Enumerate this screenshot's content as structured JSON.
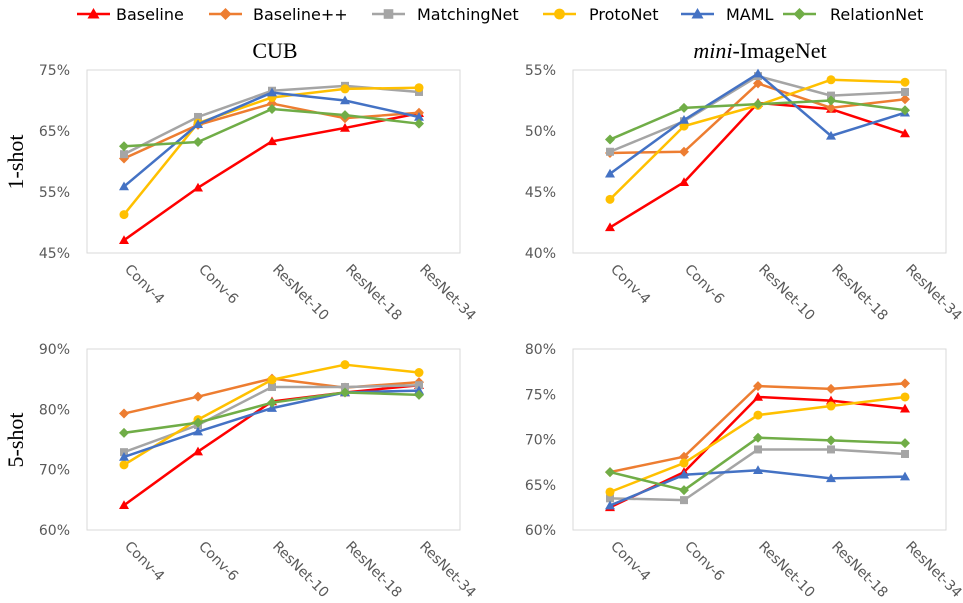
{
  "legend": [
    {
      "name": "Baseline",
      "color": "#ff0000",
      "marker": "triangle"
    },
    {
      "name": "Baseline++",
      "color": "#ed7d31",
      "marker": "diamond"
    },
    {
      "name": "MatchingNet",
      "color": "#a5a5a5",
      "marker": "square"
    },
    {
      "name": "ProtoNet",
      "color": "#ffc000",
      "marker": "circle"
    },
    {
      "name": "MAML",
      "color": "#4472c4",
      "marker": "triangle"
    },
    {
      "name": "RelationNet",
      "color": "#70ad47",
      "marker": "diamond"
    }
  ],
  "titles": {
    "cub": "CUB",
    "mini_italic": "mini",
    "mini_rest": "-ImageNet"
  },
  "row_labels": {
    "one_shot": "1-shot",
    "five_shot": "5-shot"
  },
  "chart_data": [
    {
      "type": "line",
      "title": "CUB",
      "row": "1-shot",
      "categories": [
        "Conv-4",
        "Conv-6",
        "ResNet-10",
        "ResNet-18",
        "ResNet-34"
      ],
      "ylim": [
        45,
        75
      ],
      "yticks": [
        "45%",
        "55%",
        "65%",
        "75%"
      ],
      "ytick_values": [
        45,
        55,
        65,
        75
      ],
      "series": [
        {
          "name": "Baseline",
          "values": [
            47.1,
            55.7,
            63.3,
            65.5,
            67.9
          ]
        },
        {
          "name": "Baseline++",
          "values": [
            60.5,
            66.0,
            69.5,
            67.1,
            68.0
          ]
        },
        {
          "name": "MatchingNet",
          "values": [
            61.2,
            67.3,
            71.6,
            72.4,
            71.4
          ]
        },
        {
          "name": "ProtoNet",
          "values": [
            51.3,
            66.3,
            70.5,
            71.9,
            72.1
          ]
        },
        {
          "name": "MAML",
          "values": [
            55.9,
            66.1,
            71.3,
            70.0,
            67.3
          ]
        },
        {
          "name": "RelationNet",
          "values": [
            62.5,
            63.2,
            68.6,
            67.6,
            66.2
          ]
        }
      ]
    },
    {
      "type": "line",
      "title": "mini-ImageNet",
      "row": "1-shot",
      "categories": [
        "Conv-4",
        "Conv-6",
        "ResNet-10",
        "ResNet-18",
        "ResNet-34"
      ],
      "ylim": [
        40,
        55
      ],
      "yticks": [
        "40%",
        "45%",
        "50%",
        "55%"
      ],
      "ytick_values": [
        40,
        45,
        50,
        55
      ],
      "series": [
        {
          "name": "Baseline",
          "values": [
            42.1,
            45.8,
            52.3,
            51.8,
            49.8
          ]
        },
        {
          "name": "Baseline++",
          "values": [
            48.2,
            48.3,
            53.9,
            51.9,
            52.6
          ]
        },
        {
          "name": "MatchingNet",
          "values": [
            48.3,
            50.8,
            54.5,
            52.9,
            53.2
          ]
        },
        {
          "name": "ProtoNet",
          "values": [
            44.4,
            50.4,
            52.1,
            54.2,
            54.0
          ]
        },
        {
          "name": "MAML",
          "values": [
            46.5,
            50.9,
            54.7,
            49.6,
            51.5
          ]
        },
        {
          "name": "RelationNet",
          "values": [
            49.3,
            51.9,
            52.2,
            52.5,
            51.7
          ]
        }
      ]
    },
    {
      "type": "line",
      "title": "CUB",
      "row": "5-shot",
      "categories": [
        "Conv-4",
        "Conv-6",
        "ResNet-10",
        "ResNet-18",
        "ResNet-34"
      ],
      "ylim": [
        60,
        90
      ],
      "yticks": [
        "60%",
        "70%",
        "80%",
        "90%"
      ],
      "ytick_values": [
        60,
        70,
        80,
        90
      ],
      "series": [
        {
          "name": "Baseline",
          "values": [
            64.1,
            73.0,
            81.3,
            82.8,
            84.0
          ]
        },
        {
          "name": "Baseline++",
          "values": [
            79.3,
            82.1,
            85.1,
            83.6,
            84.5
          ]
        },
        {
          "name": "MatchingNet",
          "values": [
            72.9,
            77.4,
            83.7,
            83.7,
            84.0
          ]
        },
        {
          "name": "ProtoNet",
          "values": [
            70.8,
            78.3,
            84.9,
            87.4,
            86.1
          ]
        },
        {
          "name": "MAML",
          "values": [
            72.1,
            76.3,
            80.2,
            82.8,
            83.1
          ]
        },
        {
          "name": "RelationNet",
          "values": [
            76.1,
            77.8,
            81.1,
            82.8,
            82.4
          ]
        }
      ]
    },
    {
      "type": "line",
      "title": "mini-ImageNet",
      "row": "5-shot",
      "categories": [
        "Conv-4",
        "Conv-6",
        "ResNet-10",
        "ResNet-18",
        "ResNet-34"
      ],
      "ylim": [
        60,
        80
      ],
      "yticks": [
        "60%",
        "65%",
        "70%",
        "75%",
        "80%"
      ],
      "ytick_values": [
        60,
        65,
        70,
        75,
        80
      ],
      "series": [
        {
          "name": "Baseline",
          "values": [
            62.5,
            66.4,
            74.7,
            74.3,
            73.4
          ]
        },
        {
          "name": "Baseline++",
          "values": [
            66.4,
            68.1,
            75.9,
            75.6,
            76.2
          ]
        },
        {
          "name": "MatchingNet",
          "values": [
            63.5,
            63.3,
            68.9,
            68.9,
            68.4
          ]
        },
        {
          "name": "ProtoNet",
          "values": [
            64.2,
            67.4,
            72.7,
            73.7,
            74.7
          ]
        },
        {
          "name": "MAML",
          "values": [
            62.7,
            66.1,
            66.6,
            65.7,
            65.9
          ]
        },
        {
          "name": "RelationNet",
          "values": [
            66.4,
            64.4,
            70.2,
            69.9,
            69.6
          ]
        }
      ]
    }
  ]
}
